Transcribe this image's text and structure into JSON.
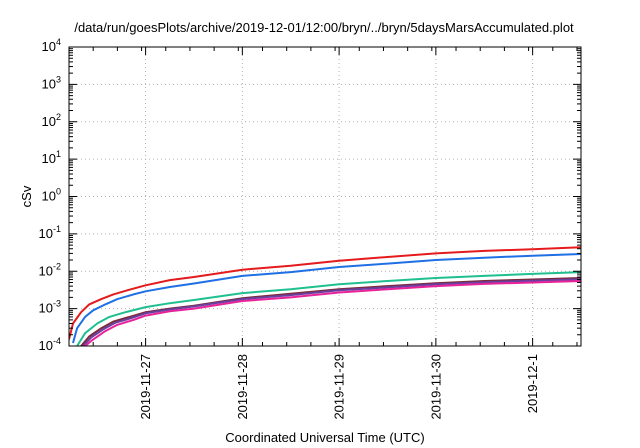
{
  "chart_data": {
    "type": "line",
    "title": "/data/run/goesPlots/archive/2019-12-01/12:00/bryn/../bryn/5daysMarsAccumulated.plot",
    "xlabel": "Coordinated Universal Time (UTC)",
    "ylabel": "cSv",
    "x_scale": "time",
    "y_scale": "log",
    "xlim": [
      "2019-11-26T05:00",
      "2019-12-01T12:00"
    ],
    "ylim": [
      0.0001,
      10000
    ],
    "x_ticks": [
      "2019-11-27",
      "2019-11-28",
      "2019-11-29",
      "2019-11-30",
      "2019-12-1"
    ],
    "y_ticks": [
      {
        "value": 0.0001,
        "base": "10",
        "exp": "-4"
      },
      {
        "value": 0.001,
        "base": "10",
        "exp": "-3"
      },
      {
        "value": 0.01,
        "base": "10",
        "exp": "-2"
      },
      {
        "value": 0.1,
        "base": "10",
        "exp": "-1"
      },
      {
        "value": 1,
        "base": "10",
        "exp": "0"
      },
      {
        "value": 10,
        "base": "10",
        "exp": "1"
      },
      {
        "value": 100,
        "base": "10",
        "exp": "2"
      },
      {
        "value": 1000,
        "base": "10",
        "exp": "3"
      },
      {
        "value": 10000,
        "base": "10",
        "exp": "4"
      }
    ],
    "grid": true,
    "legend": "none",
    "series": [
      {
        "color": "#e41a1c",
        "x": [
          "2019-11-26T05:00",
          "2019-11-26T06:00",
          "2019-11-26T08:00",
          "2019-11-26T10:00",
          "2019-11-26T13:00",
          "2019-11-26T16:00",
          "2019-11-26T20:00",
          "2019-11-27T00:00",
          "2019-11-27T06:00",
          "2019-11-27T12:00",
          "2019-11-28T00:00",
          "2019-11-28T12:00",
          "2019-11-29T00:00",
          "2019-11-29T12:00",
          "2019-11-30T00:00",
          "2019-11-30T12:00",
          "2019-12-01T00:00",
          "2019-12-01T12:00"
        ],
        "y": [
          0.00015,
          0.0004,
          0.0008,
          0.0013,
          0.0018,
          0.0024,
          0.0032,
          0.0042,
          0.0058,
          0.007,
          0.011,
          0.014,
          0.019,
          0.024,
          0.03,
          0.035,
          0.039,
          0.044
        ]
      },
      {
        "color": "#1f6fe5",
        "x": [
          "2019-11-26T06:00",
          "2019-11-26T07:00",
          "2019-11-26T09:00",
          "2019-11-26T11:00",
          "2019-11-26T14:00",
          "2019-11-26T17:00",
          "2019-11-26T21:00",
          "2019-11-27T00:00",
          "2019-11-27T06:00",
          "2019-11-27T12:00",
          "2019-11-28T00:00",
          "2019-11-28T12:00",
          "2019-11-29T00:00",
          "2019-11-29T12:00",
          "2019-11-30T00:00",
          "2019-11-30T12:00",
          "2019-12-01T00:00",
          "2019-12-01T12:00"
        ],
        "y": [
          0.00012,
          0.0003,
          0.0006,
          0.0009,
          0.0013,
          0.0018,
          0.0024,
          0.0029,
          0.0038,
          0.0047,
          0.0075,
          0.0095,
          0.013,
          0.016,
          0.02,
          0.023,
          0.026,
          0.029
        ]
      },
      {
        "color": "#1fbf8f",
        "x": [
          "2019-11-26T07:00",
          "2019-11-26T09:00",
          "2019-11-26T12:00",
          "2019-11-26T15:00",
          "2019-11-26T19:00",
          "2019-11-27T00:00",
          "2019-11-27T06:00",
          "2019-11-27T12:00",
          "2019-11-28T00:00",
          "2019-11-28T12:00",
          "2019-11-29T00:00",
          "2019-11-29T12:00",
          "2019-11-30T00:00",
          "2019-11-30T12:00",
          "2019-12-01T00:00",
          "2019-12-01T12:00"
        ],
        "y": [
          0.0001,
          0.00022,
          0.0004,
          0.0006,
          0.0008,
          0.0011,
          0.0014,
          0.0017,
          0.0026,
          0.0033,
          0.0045,
          0.0055,
          0.0066,
          0.0075,
          0.0085,
          0.0095
        ]
      },
      {
        "color": "#7a2a3a",
        "x": [
          "2019-11-26T08:00",
          "2019-11-26T10:00",
          "2019-11-26T13:00",
          "2019-11-26T16:00",
          "2019-11-26T20:00",
          "2019-11-27T00:00",
          "2019-11-27T06:00",
          "2019-11-27T12:00",
          "2019-11-28T00:00",
          "2019-11-28T12:00",
          "2019-11-29T00:00",
          "2019-11-29T12:00",
          "2019-11-30T00:00",
          "2019-11-30T12:00",
          "2019-12-01T00:00",
          "2019-12-01T12:00"
        ],
        "y": [
          0.0001,
          0.00018,
          0.0003,
          0.00045,
          0.0006,
          0.0008,
          0.001,
          0.0012,
          0.0019,
          0.0025,
          0.0033,
          0.004,
          0.0048,
          0.0055,
          0.006,
          0.0066
        ]
      },
      {
        "color": "#6a3fa0",
        "x": [
          "2019-11-26T08:30",
          "2019-11-26T10:30",
          "2019-11-26T13:30",
          "2019-11-26T16:30",
          "2019-11-26T20:30",
          "2019-11-27T00:00",
          "2019-11-27T06:00",
          "2019-11-27T12:00",
          "2019-11-28T00:00",
          "2019-11-28T12:00",
          "2019-11-29T00:00",
          "2019-11-29T12:00",
          "2019-11-30T00:00",
          "2019-11-30T12:00",
          "2019-12-01T00:00",
          "2019-12-01T12:00"
        ],
        "y": [
          0.0001,
          0.00017,
          0.00028,
          0.00042,
          0.00056,
          0.00075,
          0.00095,
          0.00115,
          0.0018,
          0.0023,
          0.0031,
          0.0037,
          0.0045,
          0.0051,
          0.0056,
          0.0061
        ]
      },
      {
        "color": "#e8239a",
        "x": [
          "2019-11-26T09:00",
          "2019-11-26T11:00",
          "2019-11-26T14:00",
          "2019-11-26T17:00",
          "2019-11-26T21:00",
          "2019-11-27T00:00",
          "2019-11-27T06:00",
          "2019-11-27T12:00",
          "2019-11-28T00:00",
          "2019-11-28T12:00",
          "2019-11-29T00:00",
          "2019-11-29T12:00",
          "2019-11-30T00:00",
          "2019-11-30T12:00",
          "2019-12-01T00:00",
          "2019-12-01T12:00"
        ],
        "y": [
          0.0001,
          0.00015,
          0.00025,
          0.00037,
          0.0005,
          0.00065,
          0.00085,
          0.001,
          0.0016,
          0.002,
          0.0027,
          0.0033,
          0.004,
          0.0046,
          0.005,
          0.0055
        ]
      }
    ]
  }
}
